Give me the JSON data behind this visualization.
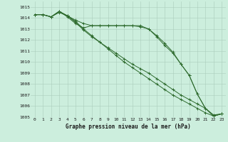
{
  "title": "Graphe pression niveau de la mer (hPa)",
  "bg_color": "#cceedd",
  "grid_color": "#aaccbb",
  "line_color": "#2d6a2d",
  "x_labels": [
    "0",
    "1",
    "2",
    "3",
    "4",
    "5",
    "6",
    "7",
    "8",
    "9",
    "10",
    "11",
    "12",
    "13",
    "14",
    "15",
    "16",
    "17",
    "18",
    "19",
    "20",
    "21",
    "22",
    "23"
  ],
  "ylim": [
    1005,
    1015.5
  ],
  "yticks": [
    1005,
    1006,
    1007,
    1008,
    1009,
    1010,
    1011,
    1012,
    1013,
    1014,
    1015
  ],
  "series": [
    [
      1014.3,
      1014.3,
      1014.1,
      1014.6,
      1014.2,
      1013.8,
      1013.5,
      1013.3,
      1013.3,
      1013.3,
      1013.3,
      1013.3,
      1013.3,
      1013.3,
      1013.0,
      1012.4,
      1011.7,
      1010.9,
      1009.8,
      1008.8,
      1007.1,
      1005.8,
      1005.1,
      1005.3
    ],
    [
      1014.3,
      1014.3,
      1014.1,
      1014.5,
      1014.2,
      1013.6,
      1012.9,
      1012.3,
      1011.8,
      1011.3,
      1010.8,
      1010.3,
      1009.8,
      1009.4,
      1009.0,
      1008.5,
      1008.0,
      1007.5,
      1007.0,
      1006.6,
      1006.2,
      1005.8,
      1005.2,
      1005.3
    ],
    [
      1014.3,
      1014.3,
      1014.1,
      1014.6,
      1014.2,
      1013.7,
      1013.0,
      1012.4,
      1011.8,
      1011.2,
      1010.6,
      1010.0,
      1009.5,
      1009.0,
      1008.5,
      1008.0,
      1007.5,
      1007.0,
      1006.6,
      1006.2,
      1005.8,
      1005.4,
      1005.1,
      1005.3
    ],
    [
      1014.3,
      1014.3,
      1014.1,
      1014.6,
      1014.1,
      1013.5,
      1013.1,
      1013.3,
      1013.3,
      1013.3,
      1013.3,
      1013.3,
      1013.3,
      1013.2,
      1013.0,
      1012.3,
      1011.5,
      1010.8,
      1009.8,
      1008.8,
      1007.1,
      1005.8,
      1005.1,
      1005.3
    ]
  ]
}
